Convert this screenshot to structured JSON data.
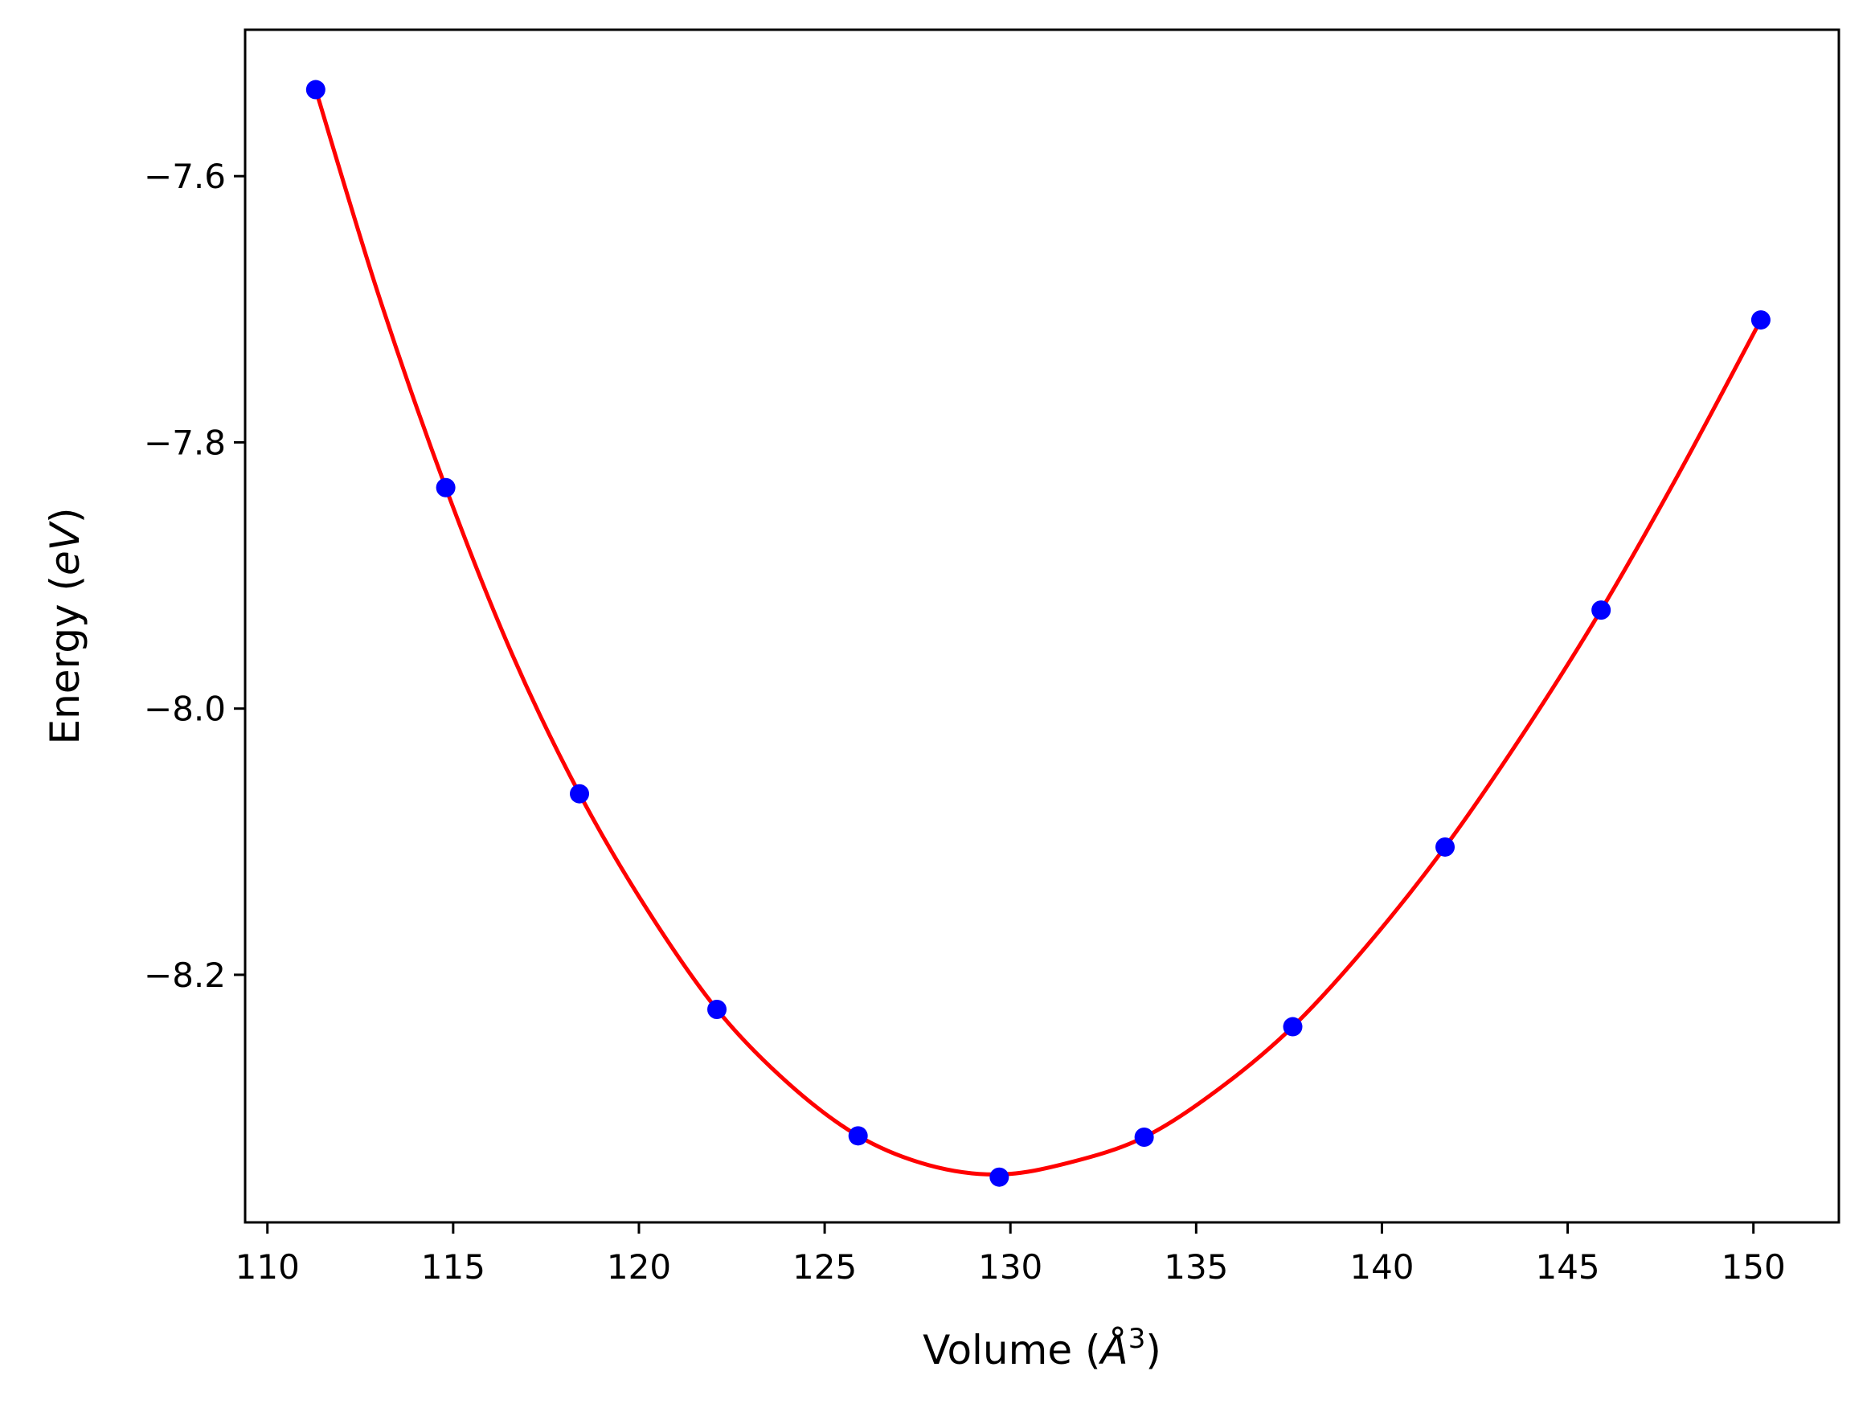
{
  "chart_data": {
    "type": "scatter",
    "title": "",
    "xlabel": {
      "prefix": "Volume (",
      "symbol": "Å",
      "sup": "3",
      "suffix": ")"
    },
    "ylabel": {
      "prefix": "Energy (",
      "unit": "eV",
      "suffix": ")"
    },
    "xlim": [
      109.4,
      152.3
    ],
    "ylim": [
      -8.386,
      -7.49
    ],
    "grid": false,
    "xticks": [
      110,
      115,
      120,
      125,
      130,
      135,
      140,
      145,
      150
    ],
    "xtick_labels": [
      "110",
      "115",
      "120",
      "125",
      "130",
      "135",
      "140",
      "145",
      "150"
    ],
    "yticks": [
      -7.6,
      -7.8,
      -8.0,
      -8.2
    ],
    "ytick_labels": [
      "−7.6",
      "−7.8",
      "−8.0",
      "−8.2"
    ],
    "series": [
      {
        "kind": "points",
        "color": "#0000ff",
        "x": [
          111.3,
          114.8,
          118.4,
          122.1,
          125.9,
          129.7,
          133.6,
          137.6,
          141.7,
          145.9,
          150.2
        ],
        "y": [
          -7.535,
          -7.834,
          -8.064,
          -8.226,
          -8.321,
          -8.352,
          -8.322,
          -8.239,
          -8.104,
          -7.926,
          -7.708
        ]
      },
      {
        "kind": "fit-line",
        "color": "#ff0000",
        "x": [
          111.3,
          113.0,
          114.8,
          116.6,
          118.4,
          120.2,
          122.1,
          124.0,
          125.9,
          127.8,
          129.7,
          131.6,
          133.6,
          135.6,
          137.6,
          139.6,
          141.7,
          143.8,
          145.9,
          148.0,
          150.2
        ],
        "y": [
          -7.535,
          -7.69,
          -7.834,
          -7.96,
          -8.064,
          -8.15,
          -8.226,
          -8.281,
          -8.321,
          -8.343,
          -8.35,
          -8.341,
          -8.322,
          -8.286,
          -8.239,
          -8.178,
          -8.104,
          -8.019,
          -7.926,
          -7.823,
          -7.708
        ]
      }
    ]
  }
}
